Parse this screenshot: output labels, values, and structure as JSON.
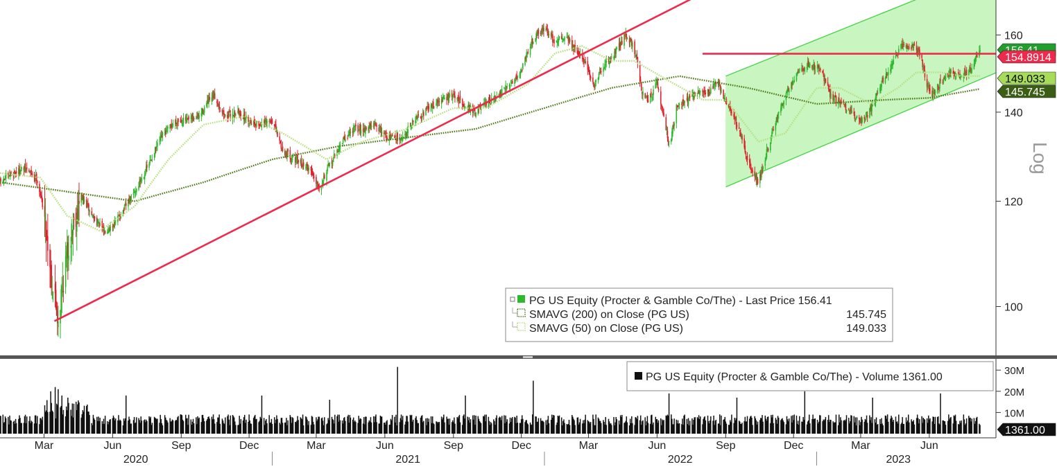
{
  "chart_data": [
    {
      "type": "line",
      "subtype": "candlestick",
      "title": "",
      "scale": "log",
      "scale_label": "Log",
      "ylim": [
        92,
        170
      ],
      "y_ticks": [
        100,
        120,
        140,
        160
      ],
      "y_tick_labels": [
        "100",
        "120",
        "140",
        "160"
      ],
      "x_range": [
        "2020-01-02",
        "2023-08-08"
      ],
      "month_ticks": [
        {
          "date": "2020-03-01",
          "label": "Mar"
        },
        {
          "date": "2020-06-01",
          "label": "Jun"
        },
        {
          "date": "2020-09-01",
          "label": "Sep"
        },
        {
          "date": "2020-12-01",
          "label": "Dec"
        },
        {
          "date": "2021-03-01",
          "label": "Mar"
        },
        {
          "date": "2021-06-01",
          "label": "Jun"
        },
        {
          "date": "2021-09-01",
          "label": "Sep"
        },
        {
          "date": "2021-12-01",
          "label": "Dec"
        },
        {
          "date": "2022-03-01",
          "label": "Mar"
        },
        {
          "date": "2022-06-01",
          "label": "Jun"
        },
        {
          "date": "2022-09-01",
          "label": "Sep"
        },
        {
          "date": "2022-12-01",
          "label": "Dec"
        },
        {
          "date": "2023-03-01",
          "label": "Mar"
        },
        {
          "date": "2023-06-01",
          "label": "Jun"
        }
      ],
      "year_labels": [
        {
          "start": "2020-01-01",
          "end": "2020-12-31",
          "label": "2020"
        },
        {
          "start": "2021-01-01",
          "end": "2021-12-31",
          "label": "2021"
        },
        {
          "start": "2022-01-01",
          "end": "2022-12-31",
          "label": "2022"
        },
        {
          "start": "2023-01-01",
          "end": "2023-08-08",
          "label": "2023"
        }
      ],
      "price_series": {
        "name": "PG US Equity (Procter & Gamble Co/The) - Last Price",
        "last_value": "156.41",
        "up_color": "#2db82d",
        "down_color": "#e0202c",
        "points": [
          {
            "date": "2020-01-02",
            "close": 124
          },
          {
            "date": "2020-01-20",
            "close": 126
          },
          {
            "date": "2020-02-05",
            "close": 127
          },
          {
            "date": "2020-02-20",
            "close": 125
          },
          {
            "date": "2020-03-01",
            "close": 118
          },
          {
            "date": "2020-03-12",
            "close": 104
          },
          {
            "date": "2020-03-20",
            "close": 98
          },
          {
            "date": "2020-03-30",
            "close": 108
          },
          {
            "date": "2020-04-08",
            "close": 115
          },
          {
            "date": "2020-04-20",
            "close": 121
          },
          {
            "date": "2020-05-05",
            "close": 117
          },
          {
            "date": "2020-05-20",
            "close": 114
          },
          {
            "date": "2020-06-01",
            "close": 115
          },
          {
            "date": "2020-06-15",
            "close": 118
          },
          {
            "date": "2020-07-01",
            "close": 122
          },
          {
            "date": "2020-07-20",
            "close": 128
          },
          {
            "date": "2020-08-05",
            "close": 134
          },
          {
            "date": "2020-08-25",
            "close": 138
          },
          {
            "date": "2020-09-10",
            "close": 138
          },
          {
            "date": "2020-09-25",
            "close": 139
          },
          {
            "date": "2020-10-05",
            "close": 142
          },
          {
            "date": "2020-10-15",
            "close": 144
          },
          {
            "date": "2020-10-30",
            "close": 139
          },
          {
            "date": "2020-11-15",
            "close": 140
          },
          {
            "date": "2020-12-01",
            "close": 138
          },
          {
            "date": "2020-12-15",
            "close": 137
          },
          {
            "date": "2021-01-01",
            "close": 138
          },
          {
            "date": "2021-01-15",
            "close": 131
          },
          {
            "date": "2021-02-01",
            "close": 129
          },
          {
            "date": "2021-02-20",
            "close": 127
          },
          {
            "date": "2021-03-05",
            "close": 123
          },
          {
            "date": "2021-03-20",
            "close": 128
          },
          {
            "date": "2021-04-05",
            "close": 133
          },
          {
            "date": "2021-04-20",
            "close": 136
          },
          {
            "date": "2021-05-05",
            "close": 136
          },
          {
            "date": "2021-05-20",
            "close": 137
          },
          {
            "date": "2021-06-05",
            "close": 134
          },
          {
            "date": "2021-06-25",
            "close": 134
          },
          {
            "date": "2021-07-10",
            "close": 138
          },
          {
            "date": "2021-07-30",
            "close": 141
          },
          {
            "date": "2021-08-15",
            "close": 143
          },
          {
            "date": "2021-08-31",
            "close": 144
          },
          {
            "date": "2021-09-15",
            "close": 142
          },
          {
            "date": "2021-09-30",
            "close": 140
          },
          {
            "date": "2021-10-15",
            "close": 142
          },
          {
            "date": "2021-11-01",
            "close": 144
          },
          {
            "date": "2021-11-15",
            "close": 147
          },
          {
            "date": "2021-11-30",
            "close": 150
          },
          {
            "date": "2021-12-10",
            "close": 156
          },
          {
            "date": "2021-12-20",
            "close": 160
          },
          {
            "date": "2022-01-01",
            "close": 162
          },
          {
            "date": "2022-01-15",
            "close": 158
          },
          {
            "date": "2022-01-30",
            "close": 160
          },
          {
            "date": "2022-02-10",
            "close": 156
          },
          {
            "date": "2022-02-25",
            "close": 153
          },
          {
            "date": "2022-03-08",
            "close": 146
          },
          {
            "date": "2022-03-20",
            "close": 151
          },
          {
            "date": "2022-04-05",
            "close": 155
          },
          {
            "date": "2022-04-20",
            "close": 160
          },
          {
            "date": "2022-04-28",
            "close": 158
          },
          {
            "date": "2022-05-05",
            "close": 153
          },
          {
            "date": "2022-05-12",
            "close": 145
          },
          {
            "date": "2022-05-20",
            "close": 143
          },
          {
            "date": "2022-06-01",
            "close": 147
          },
          {
            "date": "2022-06-12",
            "close": 137
          },
          {
            "date": "2022-06-18",
            "close": 132
          },
          {
            "date": "2022-06-28",
            "close": 142
          },
          {
            "date": "2022-07-12",
            "close": 143
          },
          {
            "date": "2022-07-28",
            "close": 145
          },
          {
            "date": "2022-08-10",
            "close": 145
          },
          {
            "date": "2022-08-20",
            "close": 148
          },
          {
            "date": "2022-08-31",
            "close": 143
          },
          {
            "date": "2022-09-12",
            "close": 139
          },
          {
            "date": "2022-09-25",
            "close": 132
          },
          {
            "date": "2022-10-05",
            "close": 127
          },
          {
            "date": "2022-10-15",
            "close": 124
          },
          {
            "date": "2022-10-25",
            "close": 130
          },
          {
            "date": "2022-11-08",
            "close": 138
          },
          {
            "date": "2022-11-20",
            "close": 144
          },
          {
            "date": "2022-12-05",
            "close": 150
          },
          {
            "date": "2022-12-20",
            "close": 152
          },
          {
            "date": "2023-01-05",
            "close": 151
          },
          {
            "date": "2023-01-20",
            "close": 144
          },
          {
            "date": "2023-02-05",
            "close": 142
          },
          {
            "date": "2023-02-20",
            "close": 139
          },
          {
            "date": "2023-03-05",
            "close": 138
          },
          {
            "date": "2023-03-15",
            "close": 141
          },
          {
            "date": "2023-03-30",
            "close": 148
          },
          {
            "date": "2023-04-10",
            "close": 151
          },
          {
            "date": "2023-04-25",
            "close": 157
          },
          {
            "date": "2023-05-08",
            "close": 157
          },
          {
            "date": "2023-05-20",
            "close": 155
          },
          {
            "date": "2023-05-28",
            "close": 147
          },
          {
            "date": "2023-06-05",
            "close": 144
          },
          {
            "date": "2023-06-15",
            "close": 147
          },
          {
            "date": "2023-06-28",
            "close": 150
          },
          {
            "date": "2023-07-12",
            "close": 149
          },
          {
            "date": "2023-07-28",
            "close": 151
          },
          {
            "date": "2023-08-08",
            "close": 156.41
          }
        ]
      },
      "moving_averages": [
        {
          "name": "SMAVG (200)  on Close (PG US)",
          "value": "145.745",
          "color": "#4f7a18",
          "points": [
            {
              "date": "2020-01-02",
              "value": 124
            },
            {
              "date": "2020-04-01",
              "value": 122
            },
            {
              "date": "2020-07-01",
              "value": 120
            },
            {
              "date": "2020-10-01",
              "value": 124
            },
            {
              "date": "2021-01-01",
              "value": 129
            },
            {
              "date": "2021-04-01",
              "value": 132
            },
            {
              "date": "2021-07-01",
              "value": 134
            },
            {
              "date": "2021-10-01",
              "value": 136
            },
            {
              "date": "2022-01-01",
              "value": 141
            },
            {
              "date": "2022-04-01",
              "value": 146
            },
            {
              "date": "2022-07-01",
              "value": 149
            },
            {
              "date": "2022-10-01",
              "value": 146
            },
            {
              "date": "2023-01-01",
              "value": 142
            },
            {
              "date": "2023-04-01",
              "value": 143
            },
            {
              "date": "2023-06-01",
              "value": 143.5
            },
            {
              "date": "2023-08-08",
              "value": 145.745
            }
          ]
        },
        {
          "name": "SMAVG (50)  on Close (PG US)",
          "value": "149.033",
          "color": "#b7e07d",
          "points": [
            {
              "date": "2020-01-02",
              "value": 126
            },
            {
              "date": "2020-02-25",
              "value": 125
            },
            {
              "date": "2020-04-01",
              "value": 117
            },
            {
              "date": "2020-05-15",
              "value": 114
            },
            {
              "date": "2020-07-01",
              "value": 119
            },
            {
              "date": "2020-08-15",
              "value": 129
            },
            {
              "date": "2020-10-01",
              "value": 137
            },
            {
              "date": "2020-11-25",
              "value": 139
            },
            {
              "date": "2021-01-15",
              "value": 135
            },
            {
              "date": "2021-03-15",
              "value": 129
            },
            {
              "date": "2021-05-01",
              "value": 133
            },
            {
              "date": "2021-07-01",
              "value": 136
            },
            {
              "date": "2021-09-01",
              "value": 141
            },
            {
              "date": "2021-10-15",
              "value": 141
            },
            {
              "date": "2021-12-10",
              "value": 147
            },
            {
              "date": "2022-01-15",
              "value": 155
            },
            {
              "date": "2022-02-20",
              "value": 157
            },
            {
              "date": "2022-04-01",
              "value": 153
            },
            {
              "date": "2022-05-01",
              "value": 153
            },
            {
              "date": "2022-06-15",
              "value": 148
            },
            {
              "date": "2022-08-01",
              "value": 143
            },
            {
              "date": "2022-09-01",
              "value": 143
            },
            {
              "date": "2022-10-15",
              "value": 133
            },
            {
              "date": "2022-11-20",
              "value": 135
            },
            {
              "date": "2023-01-01",
              "value": 146
            },
            {
              "date": "2023-02-01",
              "value": 146
            },
            {
              "date": "2023-03-15",
              "value": 142
            },
            {
              "date": "2023-04-20",
              "value": 146
            },
            {
              "date": "2023-05-15",
              "value": 150
            },
            {
              "date": "2023-06-15",
              "value": 150
            },
            {
              "date": "2023-07-15",
              "value": 149
            },
            {
              "date": "2023-08-08",
              "value": 149.033
            }
          ]
        }
      ],
      "trendlines": [
        {
          "name": "support-trendline",
          "color": "#ee2a4c",
          "from": {
            "date": "2020-03-15",
            "value": 97.5
          },
          "to": {
            "date": "2022-08-01",
            "value": 172
          }
        },
        {
          "name": "horizontal-resistance",
          "color": "#ee2a4c",
          "from": {
            "date": "2022-08-01",
            "value": 154.8914
          },
          "to": {
            "date": "2023-08-31",
            "value": 154.8914
          }
        }
      ],
      "channel": {
        "color": "#3fd43f",
        "fill": "#c8f5c0",
        "upper": {
          "from": {
            "date": "2022-09-01",
            "value": 149
          },
          "to": {
            "date": "2023-08-31",
            "value": 180
          }
        },
        "lower": {
          "from": {
            "date": "2022-09-01",
            "value": 123
          },
          "to": {
            "date": "2023-08-31",
            "value": 150
          }
        }
      },
      "axis_badges": [
        {
          "label": "156.41",
          "value": 156.41,
          "bg": "#1f9f2b",
          "fg": "#ffffff"
        },
        {
          "label": "154.8914",
          "value": 154.8914,
          "bg": "#ee2a4c",
          "fg": "#ffffff"
        },
        {
          "label": "149.033",
          "value": 149.033,
          "bg": "#a6dc5a",
          "fg": "#000000"
        },
        {
          "label": "145.745",
          "value": 145.745,
          "bg": "#3a5e13",
          "fg": "#ffffff"
        }
      ],
      "legend": {
        "placement": "bottom-right",
        "entries": [
          {
            "name": "PG US Equity (Procter & Gamble Co/The) - Last Price",
            "value": "156.41",
            "color": "#2db82d"
          },
          {
            "name": "SMAVG (200)  on Close (PG US)",
            "value": "145.745",
            "color": "#4f7a18"
          },
          {
            "name": "SMAVG (50)  on Close (PG US)",
            "value": "149.033",
            "color": "#b7e07d"
          }
        ]
      }
    },
    {
      "type": "bar",
      "title": "",
      "series_name": "PG US Equity (Procter & Gamble Co/The) - Volume",
      "last_value": "1361.00",
      "bar_color": "#111111",
      "ylim": [
        0,
        34
      ],
      "y_unit": "M",
      "y_ticks": [
        10,
        20,
        30
      ],
      "y_tick_labels": [
        "10M",
        "20M",
        "30M"
      ],
      "typical_volume_m": 6.5,
      "spikes": [
        {
          "date": "2020-03-10",
          "value": 20
        },
        {
          "date": "2020-03-16",
          "value": 22
        },
        {
          "date": "2020-03-20",
          "value": 21
        },
        {
          "date": "2020-03-25",
          "value": 18
        },
        {
          "date": "2020-04-02",
          "value": 17
        },
        {
          "date": "2020-06-19",
          "value": 18
        },
        {
          "date": "2020-12-18",
          "value": 18
        },
        {
          "date": "2021-03-19",
          "value": 16
        },
        {
          "date": "2021-06-18",
          "value": 31.5
        },
        {
          "date": "2021-09-17",
          "value": 18
        },
        {
          "date": "2021-12-17",
          "value": 25
        },
        {
          "date": "2022-06-17",
          "value": 19
        },
        {
          "date": "2022-09-16",
          "value": 17
        },
        {
          "date": "2022-12-16",
          "value": 20
        },
        {
          "date": "2023-03-17",
          "value": 17
        },
        {
          "date": "2023-06-16",
          "value": 19
        }
      ],
      "legend": {
        "placement": "top-right",
        "entries": [
          {
            "name": "PG US Equity (Procter & Gamble Co/The) - Volume",
            "value": "1361.00",
            "color": "#111111"
          }
        ]
      },
      "axis_badge": {
        "label": "1361.00",
        "bg": "#111111",
        "fg": "#ffffff"
      }
    }
  ]
}
